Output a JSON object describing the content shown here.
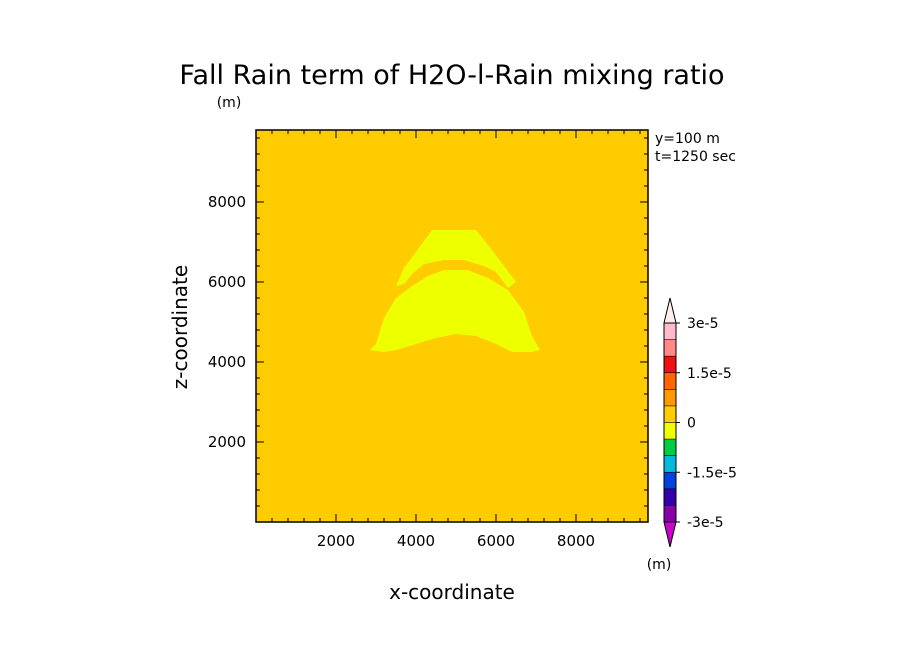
{
  "chart_data": {
    "type": "heatmap",
    "title": "Fall Rain term of H2O-l-Rain mixing ratio",
    "title_units": "(m)",
    "info": {
      "y_line": "y=100 m",
      "t_line": "t=1250 sec"
    },
    "xlabel": "x-coordinate",
    "ylabel": "z-coordinate",
    "xlim": [
      0,
      9800
    ],
    "ylim": [
      0,
      9800
    ],
    "x_ticks": [
      2000,
      4000,
      6000,
      8000
    ],
    "y_ticks": [
      2000,
      4000,
      6000,
      8000
    ],
    "x_tick_labels": [
      "2000",
      "4000",
      "6000",
      "8000"
    ],
    "y_tick_labels": [
      "2000",
      "4000",
      "6000",
      "8000"
    ],
    "background_level": "0 to 7.5e-6",
    "regions": [
      {
        "name": "upper-arc",
        "level": "-7.5e-6 to 0",
        "outline": [
          [
            3500,
            5900
          ],
          [
            3700,
            6350
          ],
          [
            4000,
            6750
          ],
          [
            4400,
            7300
          ],
          [
            5500,
            7300
          ],
          [
            5900,
            6800
          ],
          [
            6200,
            6400
          ],
          [
            6500,
            6000
          ],
          [
            6300,
            5850
          ],
          [
            6000,
            6250
          ],
          [
            5700,
            6400
          ],
          [
            5200,
            6550
          ],
          [
            4700,
            6550
          ],
          [
            4200,
            6450
          ],
          [
            3900,
            6200
          ],
          [
            3700,
            5950
          ]
        ]
      },
      {
        "name": "lower-arc",
        "level": "-7.5e-6 to 0",
        "outline": [
          [
            2850,
            4300
          ],
          [
            3000,
            4450
          ],
          [
            3200,
            5100
          ],
          [
            3500,
            5600
          ],
          [
            3900,
            5900
          ],
          [
            4300,
            6150
          ],
          [
            4700,
            6300
          ],
          [
            5300,
            6300
          ],
          [
            5800,
            6100
          ],
          [
            6300,
            5800
          ],
          [
            6700,
            5250
          ],
          [
            6900,
            4650
          ],
          [
            7100,
            4300
          ],
          [
            6900,
            4250
          ],
          [
            6400,
            4250
          ],
          [
            6000,
            4450
          ],
          [
            5500,
            4650
          ],
          [
            5000,
            4700
          ],
          [
            4500,
            4600
          ],
          [
            4000,
            4450
          ],
          [
            3500,
            4300
          ],
          [
            3200,
            4250
          ]
        ]
      }
    ],
    "colorbar": {
      "units": "(m)",
      "colors": [
        "#8800aa",
        "#3300aa",
        "#0044dd",
        "#00bbdd",
        "#00cc44",
        "#eeff00",
        "#ffcc00",
        "#ff9900",
        "#ff6600",
        "#ee1111",
        "#ff8888",
        "#ffbbcc"
      ],
      "extend_low_color": "#cc00cc",
      "extend_high_color": "#ffeeee",
      "labels": [
        {
          "value": "3e-5",
          "level": 12
        },
        {
          "value": "1.5e-5",
          "level": 9
        },
        {
          "value": "0",
          "level": 6
        },
        {
          "value": "-1.5e-5",
          "level": 3
        },
        {
          "value": "-3e-5",
          "level": 0
        }
      ]
    },
    "background_color": "#ffcc00",
    "region_color": "#eeff00"
  }
}
